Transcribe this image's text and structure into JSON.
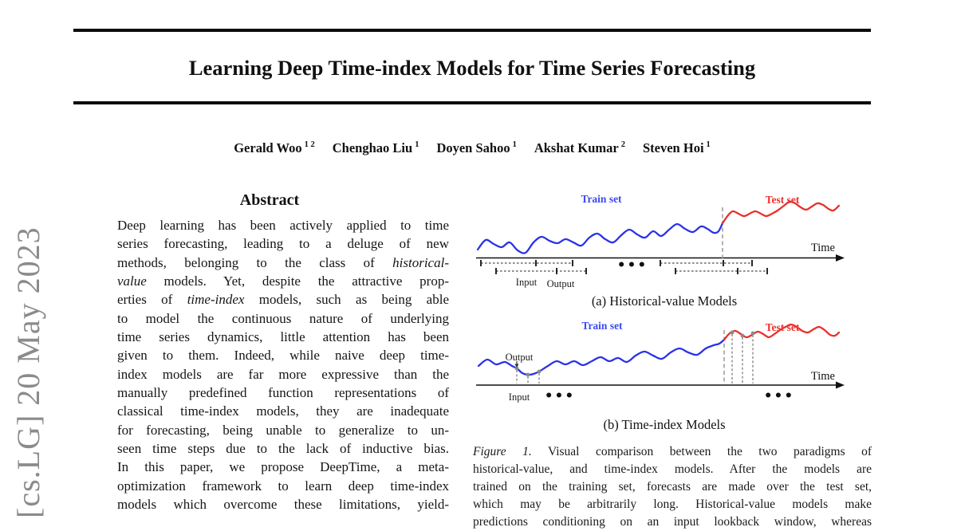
{
  "page": {
    "arxiv_stamp": "[cs.LG] 20 May 2023",
    "title": "Learning Deep Time-index Models for Time Series Forecasting"
  },
  "authors": [
    {
      "name": "Gerald Woo",
      "sup": "1 2"
    },
    {
      "name": "Chenghao Liu",
      "sup": "1"
    },
    {
      "name": "Doyen Sahoo",
      "sup": "1"
    },
    {
      "name": "Akshat Kumar",
      "sup": "2"
    },
    {
      "name": "Steven Hoi",
      "sup": "1"
    }
  ],
  "abstract": {
    "heading": "Abstract",
    "lines": [
      [
        {
          "t": "Deep learning has been actively applied to time"
        }
      ],
      [
        {
          "t": "series forecasting, leading to a deluge of new"
        }
      ],
      [
        {
          "t": "methods, belonging to the class of "
        },
        {
          "t": "historical-",
          "i": 1
        }
      ],
      [
        {
          "t": "value",
          "i": 1
        },
        {
          "t": " models. Yet, despite the attractive prop-"
        }
      ],
      [
        {
          "t": "erties of "
        },
        {
          "t": "time-index",
          "i": 1
        },
        {
          "t": " models, such as being able"
        }
      ],
      [
        {
          "t": "to model the continuous nature of underlying"
        }
      ],
      [
        {
          "t": "time series dynamics, little attention has been"
        }
      ],
      [
        {
          "t": "given to them. Indeed, while naive deep time-"
        }
      ],
      [
        {
          "t": "index models are far more expressive than the"
        }
      ],
      [
        {
          "t": "manually predefined function representations of"
        }
      ],
      [
        {
          "t": "classical time-index models, they are inadequate"
        }
      ],
      [
        {
          "t": "for forecasting, being unable to generalize to un-"
        }
      ],
      [
        {
          "t": "seen time steps due to the lack of inductive bias."
        }
      ],
      [
        {
          "t": "In this paper, we propose DeepTime, a meta-"
        }
      ],
      [
        {
          "t": "optimization framework to learn deep time-index"
        }
      ],
      [
        {
          "t": "models which overcome these limitations, yield-"
        }
      ]
    ]
  },
  "figure": {
    "panel_a": {
      "train_label": "Train set",
      "test_label": "Test set",
      "time_label": "Time",
      "input_label": "Input",
      "output_label": "Output",
      "ellipsis": "•••",
      "caption": "(a) Historical-value Models"
    },
    "panel_b": {
      "train_label": "Train set",
      "test_label": "Test set",
      "time_label": "Time",
      "input_label": "Input",
      "output_label": "Output",
      "ellipsis": "•••",
      "caption": "(b) Time-index Models"
    },
    "colors": {
      "train_curve": "#2a32e8",
      "test_curve": "#e8302a",
      "train_label": "#3b49f0",
      "test_label": "#ee2f2f",
      "dashed": "#999999",
      "dots": "#8a8a8a"
    }
  },
  "figure_caption": {
    "lines": [
      [
        {
          "t": "Figure 1.",
          "i": 1
        },
        {
          "t": " Visual comparison between the two paradigms of"
        }
      ],
      [
        {
          "t": "historical-value, and time-index models. After the models are"
        }
      ],
      [
        {
          "t": "trained on the training set, forecasts are made over the test set,"
        }
      ],
      [
        {
          "t": "which may be arbitrarily long. Historical-value models make"
        }
      ],
      [
        {
          "t": "predictions conditioning on an input lookback window, whereas"
        }
      ]
    ]
  }
}
